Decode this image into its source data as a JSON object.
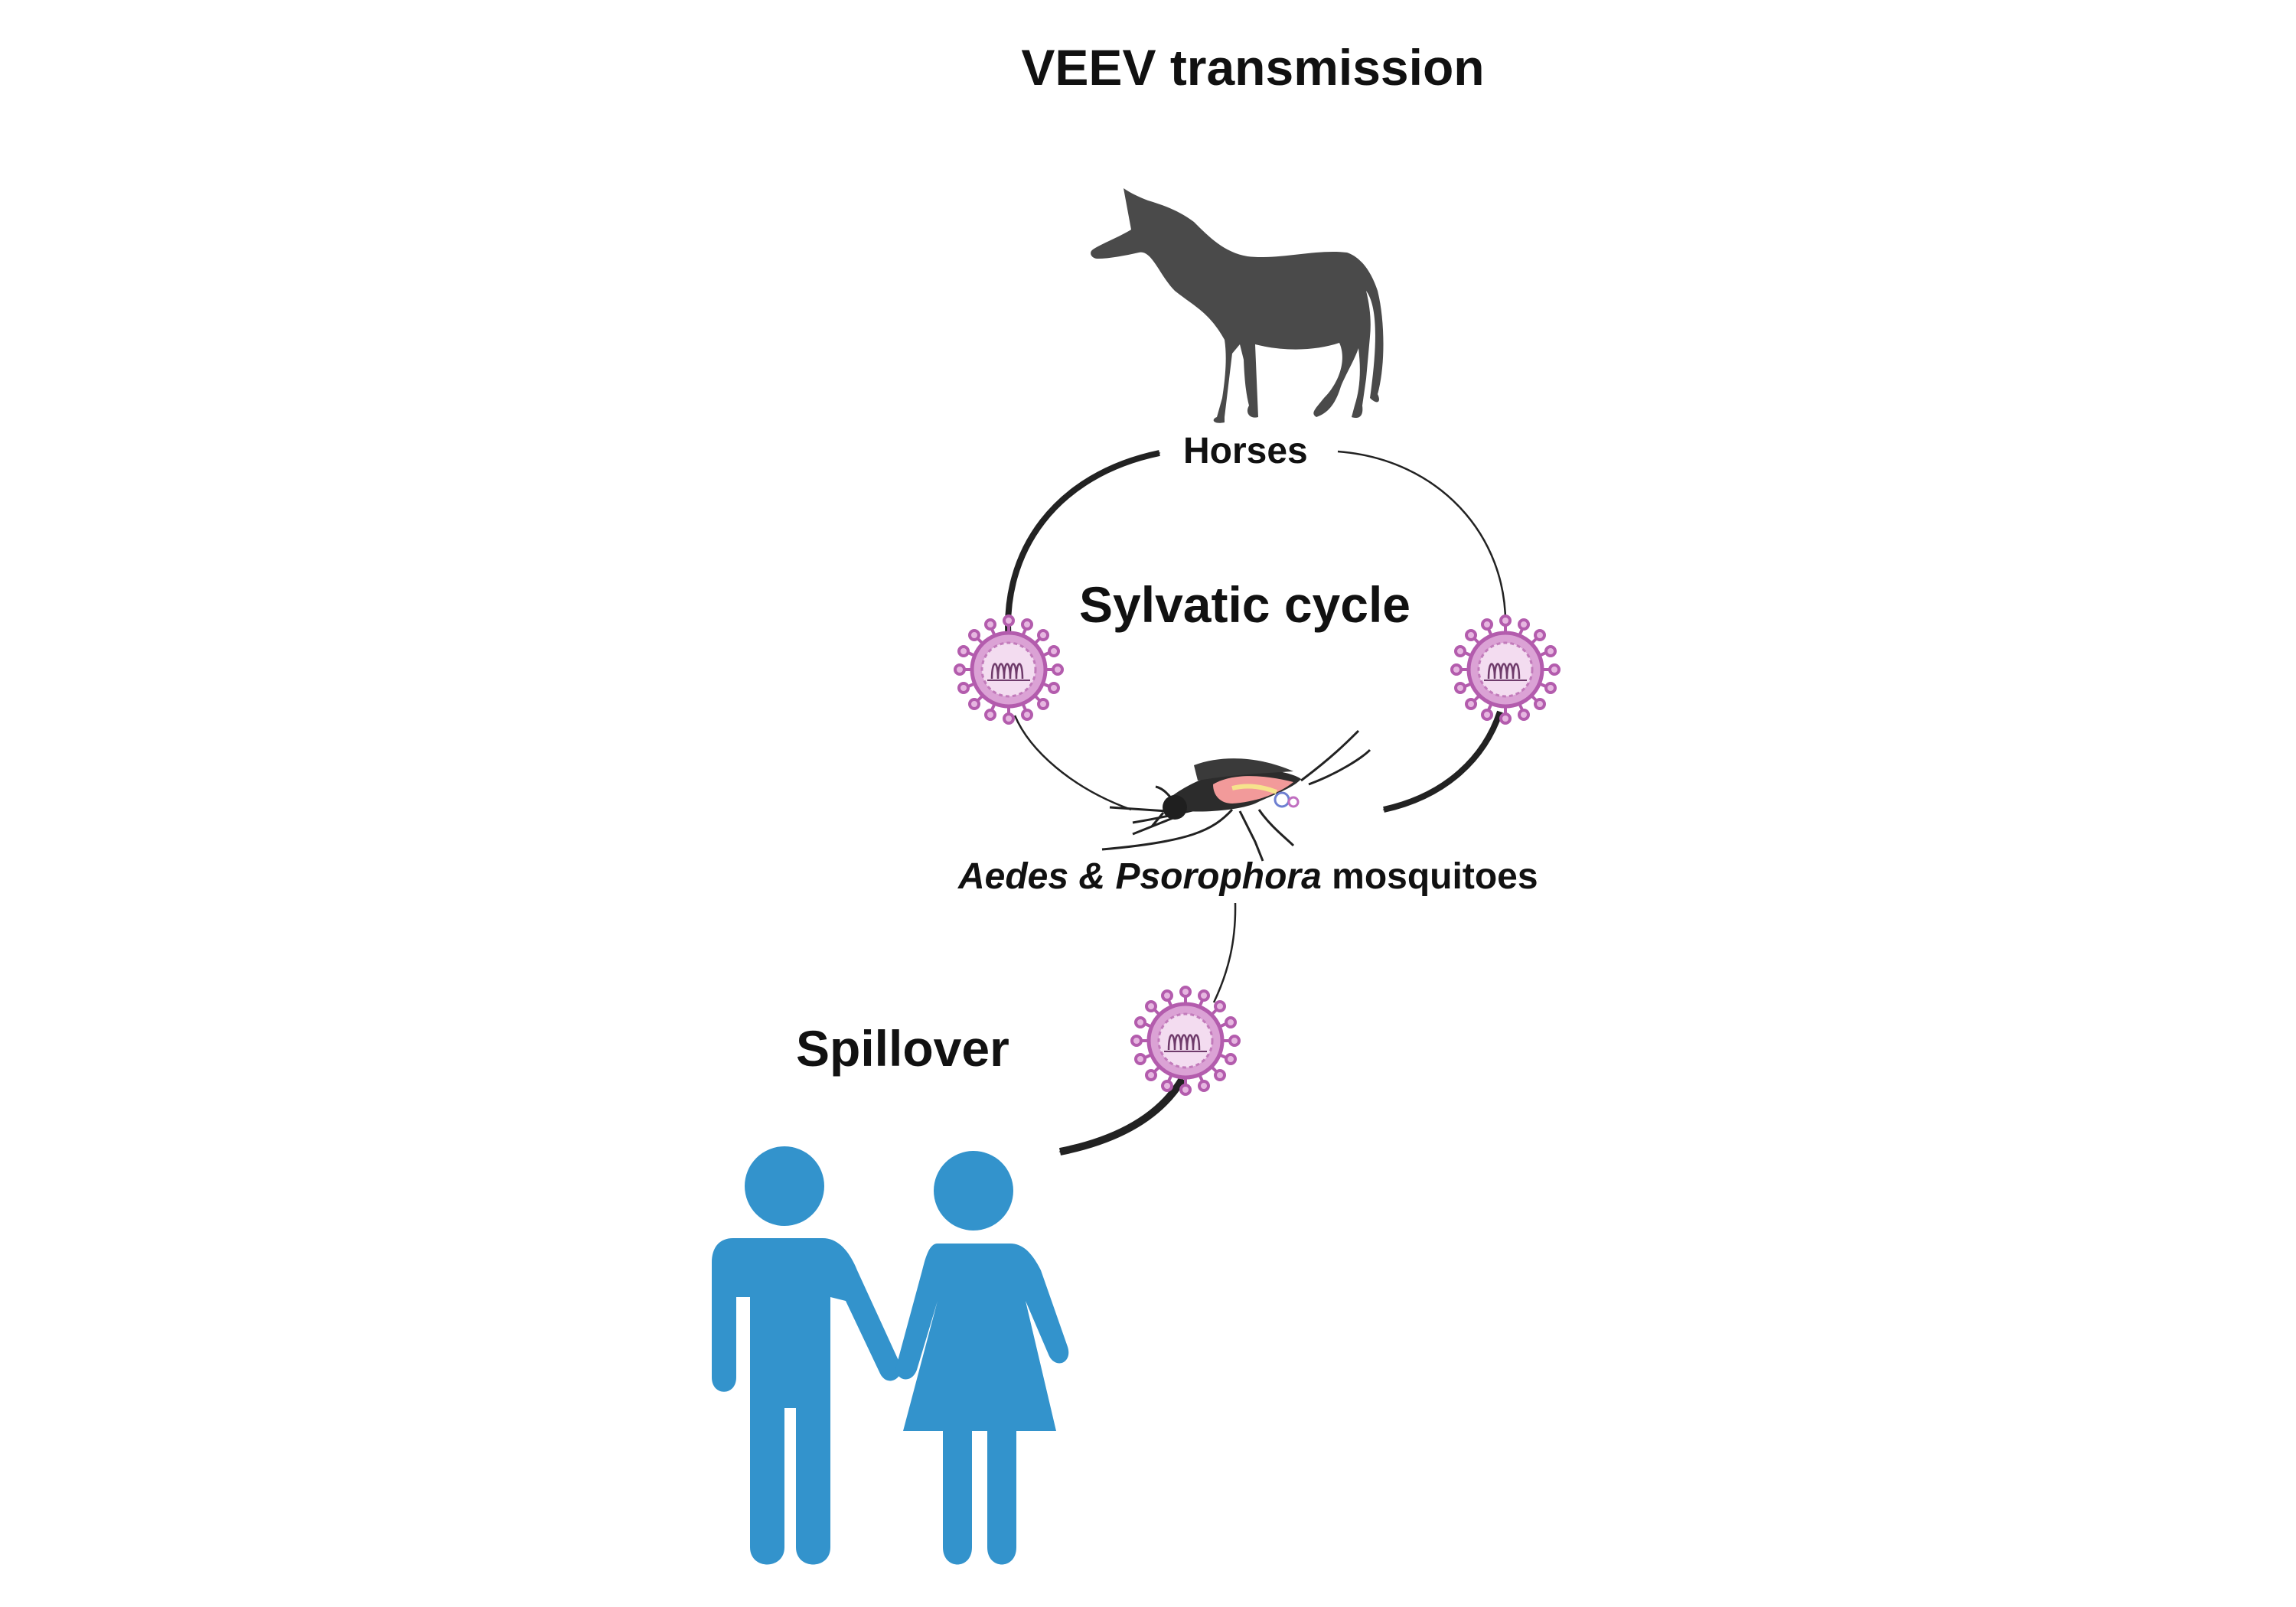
{
  "title": "VEEV transmission",
  "host_label": "Horses",
  "cycle_label": "Sylvatic cycle",
  "vector_label": {
    "genus_1": "Aedes",
    "ampersand": "&",
    "genus_2": "Psorophora",
    "suffix": "mosquitoes"
  },
  "spillover_label": "Spillover",
  "icons": {
    "host": "horse-icon",
    "vector": "mosquito-icon",
    "pathogen": "virus-particle-icon",
    "people": "human-couple-icon"
  },
  "colors": {
    "horse": "#4a4a4a",
    "humans": "#3393cc",
    "virus_fill": "#dba2d5",
    "virus_stroke": "#b35cad",
    "arrows": "#222222",
    "text": "#111111"
  }
}
